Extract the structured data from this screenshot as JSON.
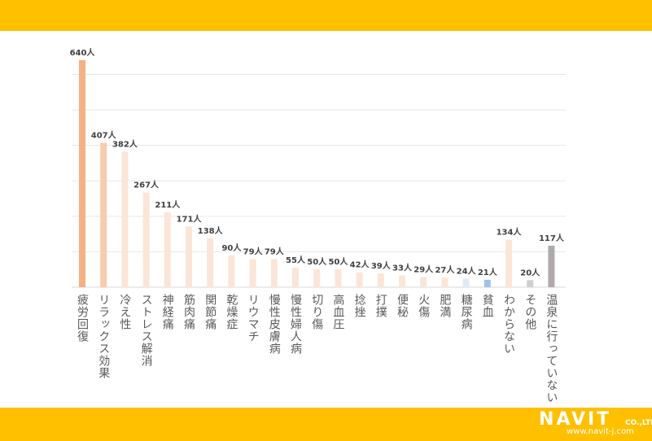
{
  "chart_data": {
    "type": "bar",
    "categories": [
      "疲労回復",
      "リラックス効果",
      "冷え性",
      "ストレス解消",
      "神経痛",
      "筋肉痛",
      "関節痛",
      "乾燥症",
      "リウマチ",
      "慢性皮膚病",
      "慢性婦人病",
      "切り傷",
      "高血圧",
      "捻挫",
      "打撲",
      "便秘",
      "火傷",
      "肥満",
      "糖尿病",
      "貧血",
      "わからない",
      "その他",
      "温泉に行っていない"
    ],
    "values": [
      640,
      407,
      382,
      267,
      211,
      171,
      138,
      90,
      79,
      79,
      55,
      50,
      50,
      42,
      39,
      33,
      29,
      27,
      24,
      21,
      134,
      20,
      117
    ],
    "data_labels": [
      "640人",
      "407人",
      "382人",
      "267人",
      "211人",
      "171人",
      "138人",
      "90人",
      "79人",
      "79人",
      "55人",
      "50人",
      "50人",
      "42人",
      "39人",
      "33人",
      "29人",
      "27人",
      "24人",
      "21人",
      "134人",
      "20人",
      "117人"
    ],
    "colors": [
      "#F4B183",
      "#F8CBAD",
      "#FBE5D6",
      "#FBE5D6",
      "#FBE5D6",
      "#FBE5D6",
      "#FBE5D6",
      "#FBE5D6",
      "#FBE5D6",
      "#FBE5D6",
      "#FBE5D6",
      "#FBE5D6",
      "#FBE5D6",
      "#FBE5D6",
      "#FBE5D6",
      "#FBE5D6",
      "#FBE5D6",
      "#FBE5D6",
      "#DEEBF7",
      "#9DC3E6",
      "#FBE5D6",
      "#D0CECE",
      "#AEAAAA"
    ],
    "ylim": [
      0,
      700
    ],
    "grid": true,
    "title": "",
    "xlabel": "",
    "ylabel": ""
  },
  "logo": {
    "name": "NAVIT",
    "suffix": "CO.,LTD.",
    "url": "www.navit-j.com"
  },
  "colors": {
    "banner": "#FFC000",
    "grid": "#E7E7E7",
    "label": "#404040"
  }
}
